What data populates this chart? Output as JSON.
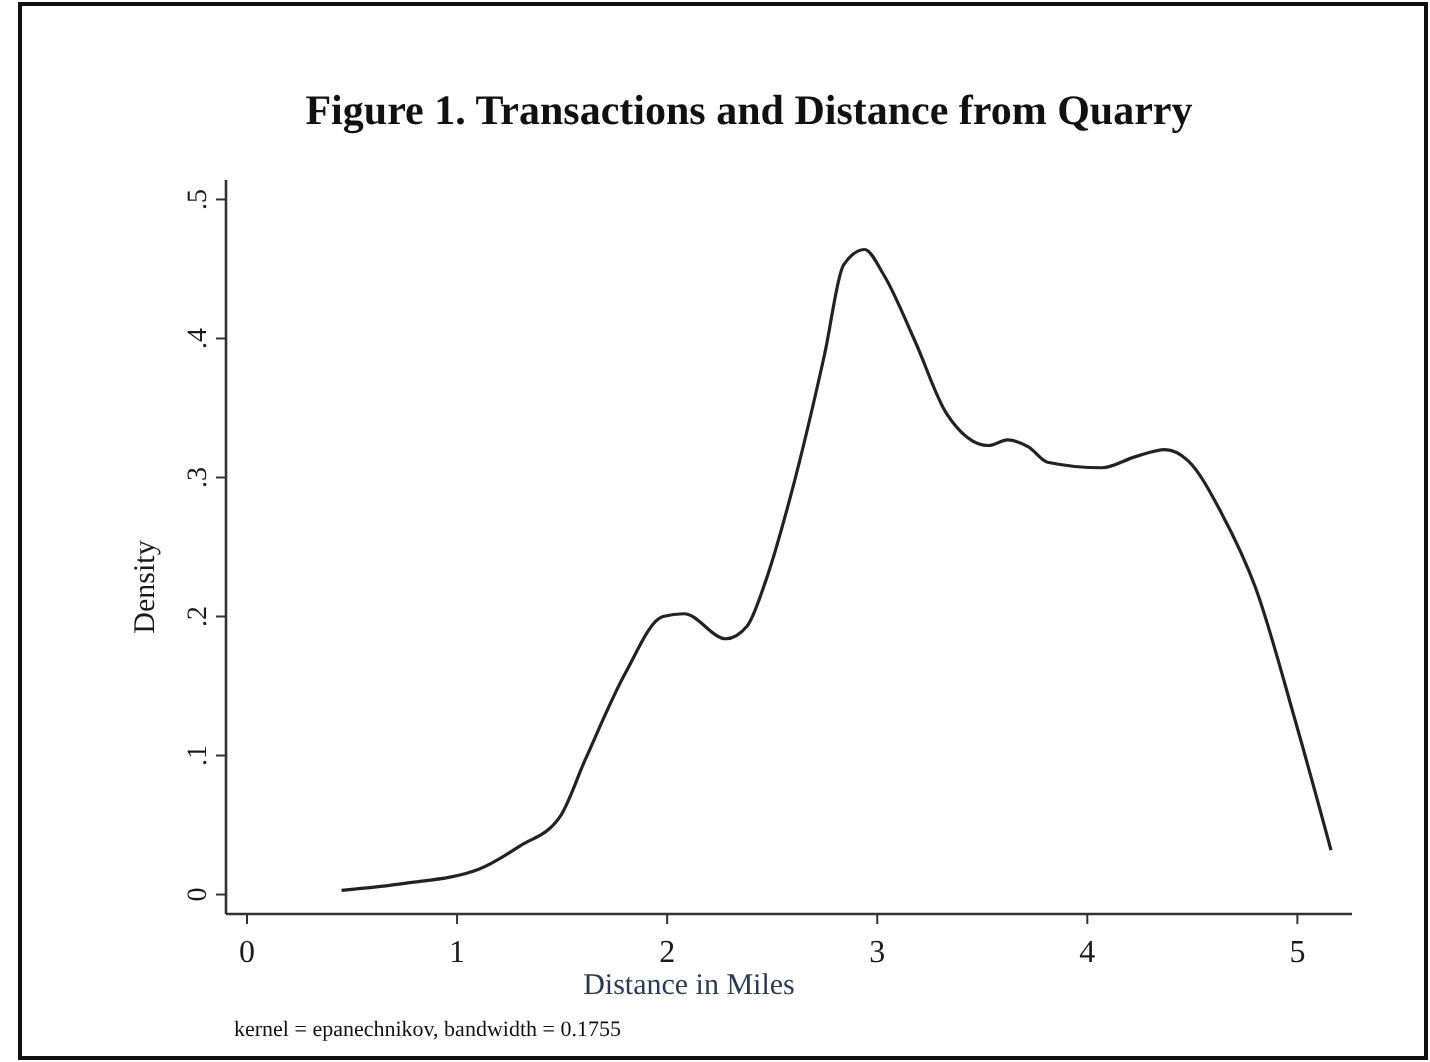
{
  "chart_data": {
    "type": "line",
    "title": "Figure 1.  Transactions and Distance from Quarry",
    "xlabel": "Distance in Miles",
    "ylabel": "Density",
    "annotations": [
      "kernel = epanechnikov, bandwidth = 0.1755"
    ],
    "series": [
      {
        "color": "#222222",
        "x": [
          0.45,
          0.75,
          1.1,
          1.3,
          1.49,
          1.61,
          1.8,
          1.98,
          2.08,
          2.28,
          2.38,
          2.47,
          2.59,
          2.75,
          2.84,
          2.94,
          3.03,
          3.18,
          3.33,
          3.53,
          3.62,
          3.72,
          3.81,
          4.07,
          4.23,
          4.37,
          4.48,
          4.64,
          4.8,
          4.99,
          5.16
        ],
        "values": [
          0.003,
          0.008,
          0.018,
          0.035,
          0.056,
          0.097,
          0.159,
          0.2,
          0.202,
          0.184,
          0.193,
          0.226,
          0.288,
          0.389,
          0.453,
          0.464,
          0.446,
          0.398,
          0.346,
          0.323,
          0.327,
          0.322,
          0.311,
          0.307,
          0.315,
          0.32,
          0.312,
          0.274,
          0.221,
          0.125,
          0.032
        ]
      }
    ],
    "xlim": [
      -0.1,
      5.26
    ],
    "xticks": [
      0,
      1,
      2,
      3,
      4,
      5
    ],
    "ylim": [
      -0.014,
      0.514
    ],
    "yticks": [
      0,
      {
        "value": 0.1,
        "label": ".1"
      },
      {
        "value": 0.2,
        "label": ".2"
      },
      {
        "value": 0.3,
        "label": ".3"
      },
      {
        "value": 0.4,
        "label": ".4"
      },
      {
        "value": 0.5,
        "label": ".5"
      }
    ],
    "grid": false,
    "marker": "none",
    "line_style": "solid"
  }
}
